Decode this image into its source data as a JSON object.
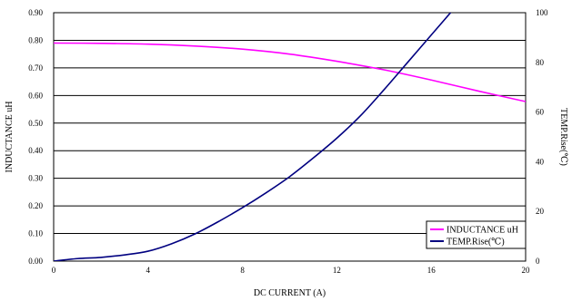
{
  "chart_data": {
    "type": "line",
    "title": "",
    "xlabel": "DC CURRENT (A)",
    "ylabel_left": "INDUCTANCE uH",
    "ylabel_right": "TEMP.Rise(℃)",
    "xlim": [
      0,
      20
    ],
    "ylim_left": [
      0,
      0.9
    ],
    "ylim_right": [
      0,
      100
    ],
    "x_ticks": [
      "0",
      "4",
      "8",
      "12",
      "16",
      "20"
    ],
    "y_left_ticks": [
      "0.00",
      "0.10",
      "0.20",
      "0.30",
      "0.40",
      "0.50",
      "0.60",
      "0.70",
      "0.80",
      "0.90"
    ],
    "y_right_ticks": [
      "0",
      "20",
      "40",
      "60",
      "80",
      "100"
    ],
    "grid": "horizontal",
    "legend_position": "bottom-right",
    "series": [
      {
        "name": "INDUCTANCE uH",
        "axis": "left",
        "color": "#ff00ff",
        "x": [
          0,
          2,
          4,
          6,
          8,
          10,
          12,
          14,
          16,
          18,
          20
        ],
        "y": [
          0.79,
          0.789,
          0.786,
          0.779,
          0.768,
          0.75,
          0.724,
          0.693,
          0.656,
          0.616,
          0.578
        ]
      },
      {
        "name": "TEMP.Rise(℃)",
        "axis": "right",
        "color": "#000080",
        "x": [
          0,
          1,
          2,
          3,
          4,
          5,
          6,
          7,
          8,
          9,
          10,
          11,
          12,
          13,
          14,
          15,
          16
        ],
        "y": [
          0,
          1,
          1.5,
          2.5,
          4,
          7,
          11,
          16,
          21.5,
          27.5,
          34,
          41.5,
          49.5,
          58.5,
          69,
          80,
          91
        ]
      }
    ]
  }
}
